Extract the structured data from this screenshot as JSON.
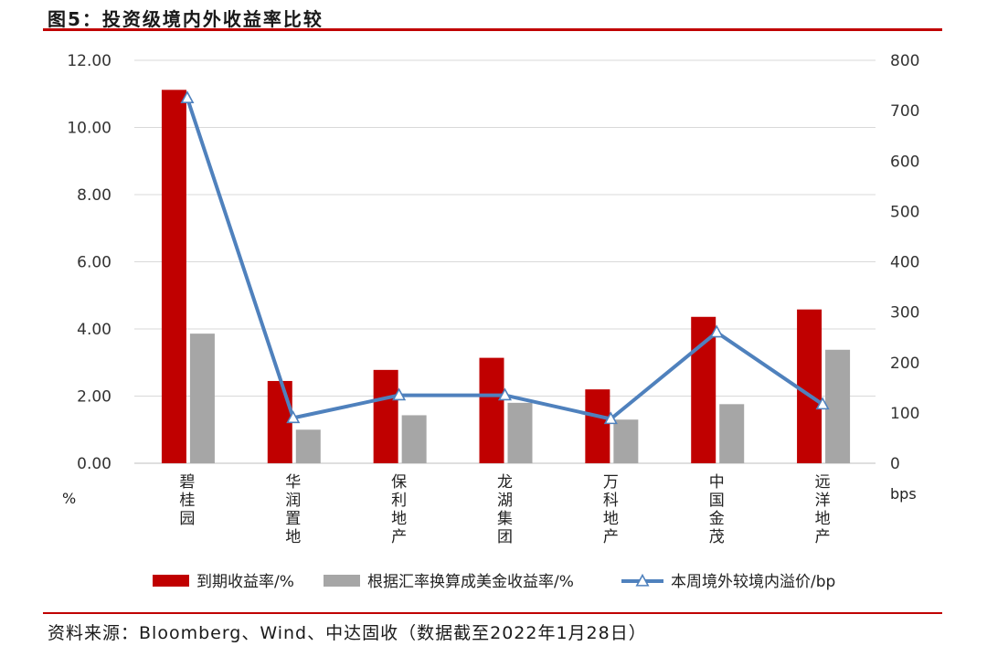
{
  "header": {
    "title": "图5：投资级境内外收益率比较"
  },
  "footer": {
    "source": "资料来源：Bloomberg、Wind、中达固收（数据截至2022年1月28日）"
  },
  "chart_data": {
    "type": "bar",
    "categories": [
      "碧桂园",
      "华润置地",
      "保利地产",
      "龙湖集团",
      "万科地产",
      "中国金茂",
      "远洋地产"
    ],
    "series": [
      {
        "name": "到期收益率/%",
        "type": "bar",
        "axis": "left",
        "values": [
          11.12,
          2.45,
          2.78,
          3.14,
          2.2,
          4.36,
          4.58
        ],
        "color": "#c00000"
      },
      {
        "name": "根据汇率换算成美金收益率/%",
        "type": "bar",
        "axis": "left",
        "values": [
          3.86,
          1.0,
          1.43,
          1.8,
          1.3,
          1.76,
          3.38
        ],
        "color": "#a6a6a6"
      },
      {
        "name": "本周境外较境内溢价/bp",
        "type": "line",
        "axis": "right",
        "marker": "triangle",
        "values": [
          725,
          90,
          135,
          135,
          88,
          260,
          117
        ],
        "color": "#4f81bd"
      }
    ],
    "y_left": {
      "label": "%",
      "min": 0,
      "max": 12,
      "step": 2,
      "ticks": [
        "0.00",
        "2.00",
        "4.00",
        "6.00",
        "8.00",
        "10.00",
        "12.00"
      ]
    },
    "y_right": {
      "label": "bps",
      "min": 0,
      "max": 800,
      "step": 100,
      "ticks": [
        "0",
        "100",
        "200",
        "300",
        "400",
        "500",
        "600",
        "700",
        "800"
      ]
    },
    "grid": true,
    "legend": "bottom"
  }
}
